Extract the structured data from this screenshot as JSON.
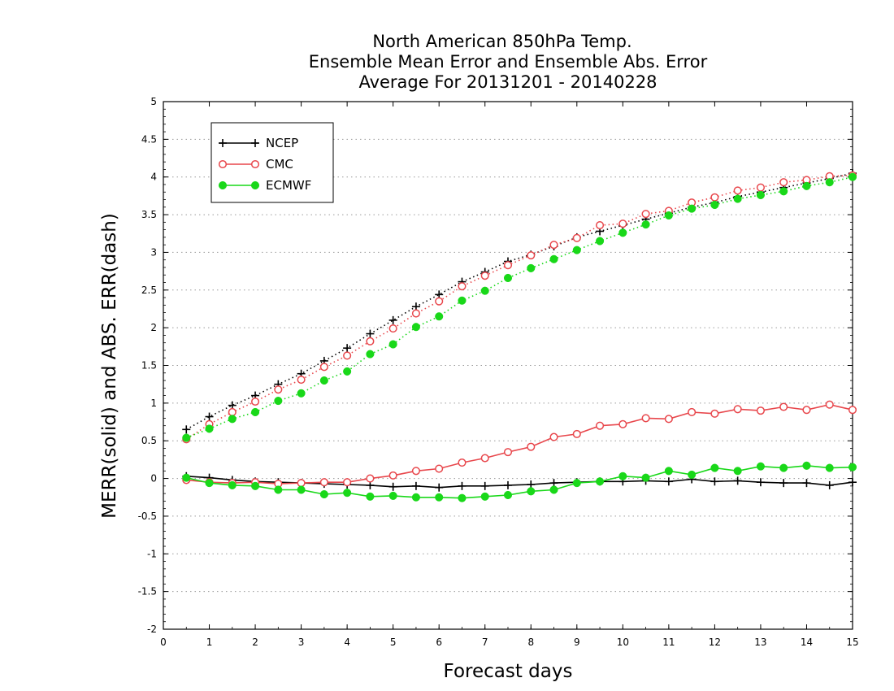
{
  "chart_data": {
    "type": "line",
    "title_lines": [
      "North American 850hPa Temp.",
      "Ensemble Mean Error and Ensemble Abs. Error",
      "Average For 20131201 - 20140228"
    ],
    "xlabel": "Forecast days",
    "ylabel": "MERR(solid) and ABS. ERR(dash)",
    "xlim": [
      0,
      15
    ],
    "ylim": [
      -2,
      5
    ],
    "x_ticks": [
      "0",
      "1",
      "2",
      "3",
      "4",
      "5",
      "6",
      "7",
      "8",
      "9",
      "10",
      "11",
      "12",
      "13",
      "14",
      "15"
    ],
    "y_ticks": [
      "-2",
      "-1.5",
      "-1",
      "-0.5",
      "0",
      "0.5",
      "1",
      "1.5",
      "2",
      "2.5",
      "3",
      "3.5",
      "4",
      "4.5",
      "5"
    ],
    "grid": "horizontal dotted",
    "legend_placement": "top-left",
    "x": [
      0.5,
      1,
      1.5,
      2,
      2.5,
      3,
      3.5,
      4,
      4.5,
      5,
      5.5,
      6,
      6.5,
      7,
      7.5,
      8,
      8.5,
      9,
      9.5,
      10,
      10.5,
      11,
      11.5,
      12,
      12.5,
      13,
      13.5,
      14,
      14.5,
      15
    ],
    "series": [
      {
        "name": "NCEP",
        "color": "#000000",
        "marker": "plus",
        "merr": [
          0.03,
          0.01,
          -0.02,
          -0.04,
          -0.05,
          -0.06,
          -0.07,
          -0.08,
          -0.09,
          -0.11,
          -0.1,
          -0.12,
          -0.1,
          -0.1,
          -0.09,
          -0.08,
          -0.06,
          -0.05,
          -0.04,
          -0.04,
          -0.03,
          -0.04,
          -0.01,
          -0.04,
          -0.03,
          -0.05,
          -0.06,
          -0.06,
          -0.09,
          -0.05
        ],
        "abs_err": [
          0.65,
          0.82,
          0.97,
          1.1,
          1.25,
          1.39,
          1.56,
          1.73,
          1.92,
          2.1,
          2.28,
          2.44,
          2.61,
          2.74,
          2.88,
          2.97,
          3.08,
          3.2,
          3.28,
          3.36,
          3.44,
          3.52,
          3.6,
          3.66,
          3.74,
          3.8,
          3.86,
          3.92,
          3.98,
          4.05
        ]
      },
      {
        "name": "CMC",
        "color": "#e8474c",
        "marker": "open-circle",
        "merr": [
          -0.02,
          -0.05,
          -0.06,
          -0.05,
          -0.07,
          -0.06,
          -0.05,
          -0.05,
          0.0,
          0.04,
          0.1,
          0.13,
          0.21,
          0.27,
          0.35,
          0.42,
          0.55,
          0.59,
          0.7,
          0.72,
          0.8,
          0.79,
          0.88,
          0.86,
          0.92,
          0.9,
          0.95,
          0.91,
          0.98,
          0.91
        ],
        "abs_err": [
          0.52,
          0.72,
          0.88,
          1.02,
          1.18,
          1.31,
          1.48,
          1.63,
          1.82,
          1.99,
          2.19,
          2.35,
          2.55,
          2.69,
          2.83,
          2.96,
          3.1,
          3.19,
          3.36,
          3.38,
          3.51,
          3.55,
          3.66,
          3.73,
          3.82,
          3.86,
          3.93,
          3.96,
          4.01,
          4.02
        ]
      },
      {
        "name": "ECMWF",
        "color": "#19d819",
        "marker": "filled-circle",
        "merr": [
          0.01,
          -0.06,
          -0.09,
          -0.1,
          -0.15,
          -0.15,
          -0.21,
          -0.19,
          -0.24,
          -0.23,
          -0.25,
          -0.25,
          -0.26,
          -0.24,
          -0.22,
          -0.17,
          -0.15,
          -0.06,
          -0.04,
          0.03,
          0.01,
          0.1,
          0.05,
          0.14,
          0.1,
          0.16,
          0.14,
          0.17,
          0.14,
          0.15
        ],
        "abs_err": [
          0.54,
          0.66,
          0.79,
          0.88,
          1.03,
          1.13,
          1.3,
          1.42,
          1.65,
          1.78,
          2.01,
          2.15,
          2.36,
          2.49,
          2.66,
          2.79,
          2.91,
          3.03,
          3.15,
          3.26,
          3.37,
          3.49,
          3.58,
          3.63,
          3.71,
          3.76,
          3.81,
          3.88,
          3.93,
          4.0
        ]
      }
    ]
  }
}
